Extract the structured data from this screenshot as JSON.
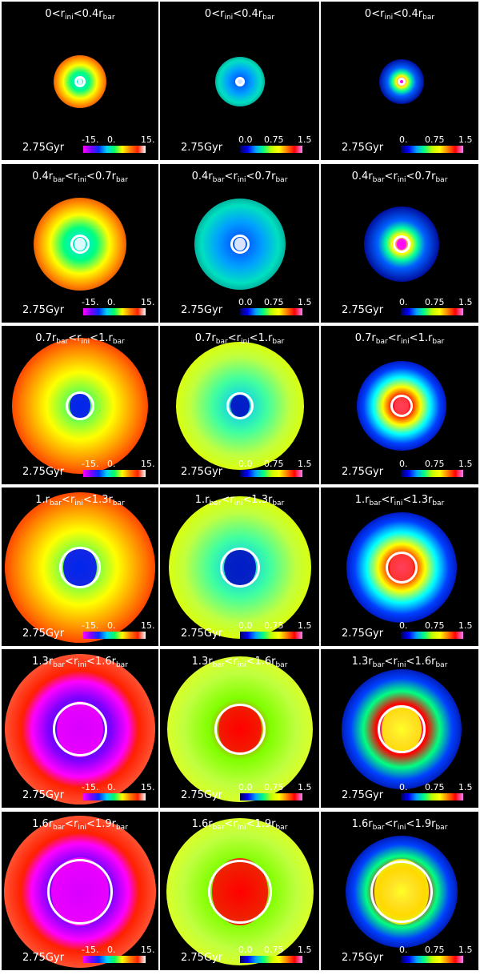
{
  "time_label": "2.75Gyr",
  "columns": [
    {
      "ticks": [
        "-15.",
        "0.",
        "15."
      ],
      "colormap": "linear-gradient(to right, #ff00ff, #8000ff, #0030ff, #00d0ff, #00ff60, #ffff00, #ff8000, #ff2000, #ffffff)"
    },
    {
      "ticks": [
        "0.0",
        "0.75",
        "1.5"
      ],
      "colormap": "linear-gradient(to right, #000050, #0000ff, #00a0ff, #00ff80, #c0ff00, #ffff00, #ff8000, #ff0000, #ff80ff)"
    },
    {
      "ticks": [
        "0.",
        "0.75",
        "1.5"
      ],
      "colormap": "linear-gradient(to right, #000050, #0000ff, #00a0ff, #00ff80, #c0ff00, #ffff00, #ff8000, #ff0000, #ff80ff)"
    }
  ],
  "rows": [
    {
      "title": {
        "low": "0",
        "low_sub": "",
        "mid": "r",
        "mid_sub": "ini",
        "high": "0.4r",
        "high_sub": "bar"
      },
      "columns_title": [
        "0<r_ini<0.4r_bar"
      ]
    },
    {
      "title": {
        "low": "0.4r",
        "low_sub": "bar",
        "mid": "r",
        "mid_sub": "ini",
        "high": "0.7r",
        "high_sub": "bar"
      }
    },
    {
      "title": {
        "low": "0.7r",
        "low_sub": "bar",
        "mid": "r",
        "mid_sub": "ini",
        "high": "1.r",
        "high_sub": "bar"
      }
    },
    {
      "title": {
        "low": "1.r",
        "low_sub": "bar",
        "mid": "r",
        "mid_sub": "ini",
        "high": "1.3r",
        "high_sub": "bar"
      }
    },
    {
      "title": {
        "low": "1.3r",
        "low_sub": "bar",
        "mid": "r",
        "mid_sub": "ini",
        "high": "1.6r",
        "high_sub": "bar"
      }
    },
    {
      "title": {
        "low": "1.6r",
        "low_sub": "bar",
        "mid": "r",
        "mid_sub": "ini",
        "high": "1.9r",
        "high_sub": "bar"
      }
    }
  ]
}
